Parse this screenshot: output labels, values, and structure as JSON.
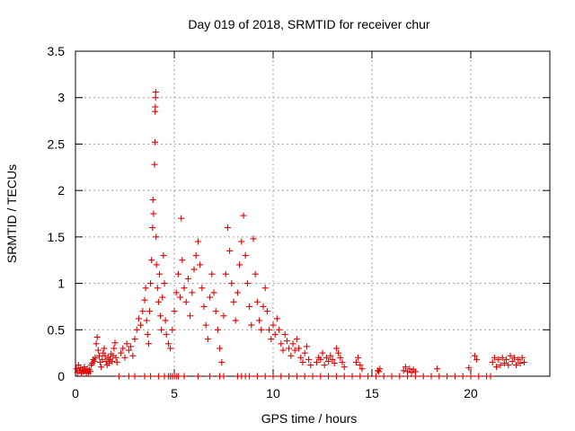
{
  "chart_data": {
    "type": "scatter",
    "title": "Day 019 of 2018, SRMTID for receiver chur",
    "xlabel": "GPS time / hours",
    "ylabel": "SRMTID / TECUs",
    "xlim": [
      0,
      24
    ],
    "ylim": [
      0,
      3.5
    ],
    "xticks": [
      "0",
      "5",
      "10",
      "15",
      "20"
    ],
    "xtick_values": [
      0,
      5,
      10,
      15,
      20
    ],
    "yticks": [
      "0",
      "0.5",
      "1",
      "1.5",
      "2",
      "2.5",
      "3",
      "3.5"
    ],
    "ytick_values": [
      0,
      0.5,
      1,
      1.5,
      2,
      2.5,
      3,
      3.5
    ],
    "grid": true,
    "marker": "+",
    "marker_color": "#e00000",
    "series": [
      {
        "name": "SRMTID",
        "points": [
          [
            0.05,
            0.08
          ],
          [
            0.1,
            0.04
          ],
          [
            0.15,
            0.12
          ],
          [
            0.2,
            0.06
          ],
          [
            0.25,
            0.09
          ],
          [
            0.3,
            0.03
          ],
          [
            0.35,
            0.07
          ],
          [
            0.4,
            0.05
          ],
          [
            0.45,
            0.1
          ],
          [
            0.5,
            0.06
          ],
          [
            0.55,
            0.04
          ],
          [
            0.6,
            0.08
          ],
          [
            0.65,
            0.03
          ],
          [
            0.7,
            0.07
          ],
          [
            0.75,
            0.05
          ],
          [
            0.8,
            0.12
          ],
          [
            0.85,
            0.14
          ],
          [
            0.9,
            0.18
          ],
          [
            0.95,
            0.16
          ],
          [
            1.0,
            0.2
          ],
          [
            1.05,
            0.35
          ],
          [
            1.1,
            0.42
          ],
          [
            1.15,
            0.28
          ],
          [
            1.2,
            0.22
          ],
          [
            1.25,
            0.15
          ],
          [
            1.3,
            0.1
          ],
          [
            1.35,
            0.18
          ],
          [
            1.4,
            0.25
          ],
          [
            1.45,
            0.3
          ],
          [
            1.5,
            0.22
          ],
          [
            1.55,
            0.16
          ],
          [
            1.6,
            0.12
          ],
          [
            1.65,
            0.2
          ],
          [
            1.7,
            0.14
          ],
          [
            1.75,
            0.18
          ],
          [
            1.8,
            0.24
          ],
          [
            1.85,
            0.16
          ],
          [
            1.9,
            0.22
          ],
          [
            1.95,
            0.3
          ],
          [
            2.0,
            0.36
          ],
          [
            2.05,
            0.2
          ],
          [
            2.1,
            0.15
          ],
          [
            2.3,
            0.25
          ],
          [
            2.4,
            0.3
          ],
          [
            2.5,
            0.2
          ],
          [
            2.6,
            0.35
          ],
          [
            2.7,
            0.28
          ],
          [
            2.8,
            0.32
          ],
          [
            2.9,
            0.22
          ],
          [
            3.0,
            0.4
          ],
          [
            3.1,
            0.5
          ],
          [
            3.2,
            0.62
          ],
          [
            3.3,
            0.55
          ],
          [
            3.4,
            0.7
          ],
          [
            3.5,
            0.82
          ],
          [
            3.55,
            0.95
          ],
          [
            3.6,
            0.6
          ],
          [
            3.65,
            0.45
          ],
          [
            3.7,
            0.35
          ],
          [
            3.75,
            0.7
          ],
          [
            3.8,
            1.0
          ],
          [
            3.85,
            1.25
          ],
          [
            3.9,
            1.6
          ],
          [
            3.92,
            1.9
          ],
          [
            3.95,
            1.75
          ],
          [
            4.0,
            2.28
          ],
          [
            4.02,
            2.52
          ],
          [
            4.03,
            2.85
          ],
          [
            4.04,
            2.9
          ],
          [
            4.05,
            3.0
          ],
          [
            4.06,
            3.06
          ],
          [
            4.08,
            1.5
          ],
          [
            4.1,
            1.2
          ],
          [
            4.15,
            0.95
          ],
          [
            4.2,
            0.8
          ],
          [
            4.25,
            1.1
          ],
          [
            4.3,
            0.65
          ],
          [
            4.35,
            0.5
          ],
          [
            4.4,
            0.85
          ],
          [
            4.45,
            1.3
          ],
          [
            4.5,
            1.0
          ],
          [
            4.55,
            0.6
          ],
          [
            4.6,
            0.45
          ],
          [
            4.7,
            0.35
          ],
          [
            4.8,
            0.3
          ],
          [
            4.9,
            0.5
          ],
          [
            5.0,
            0.7
          ],
          [
            5.1,
            0.9
          ],
          [
            5.2,
            1.1
          ],
          [
            5.3,
            0.85
          ],
          [
            5.35,
            1.7
          ],
          [
            5.4,
            1.25
          ],
          [
            5.5,
            0.95
          ],
          [
            5.6,
            0.8
          ],
          [
            5.7,
            1.05
          ],
          [
            5.8,
            0.65
          ],
          [
            5.9,
            0.9
          ],
          [
            6.0,
            1.15
          ],
          [
            6.1,
            1.3
          ],
          [
            6.2,
            1.45
          ],
          [
            6.3,
            1.2
          ],
          [
            6.4,
            0.95
          ],
          [
            6.5,
            0.75
          ],
          [
            6.6,
            0.55
          ],
          [
            6.7,
            0.4
          ],
          [
            6.8,
            0.85
          ],
          [
            6.9,
            1.1
          ],
          [
            7.0,
            0.9
          ],
          [
            7.1,
            0.7
          ],
          [
            7.2,
            0.5
          ],
          [
            7.3,
            0.3
          ],
          [
            7.4,
            0.15
          ],
          [
            7.5,
            0.65
          ],
          [
            7.6,
            1.1
          ],
          [
            7.7,
            1.6
          ],
          [
            7.8,
            1.35
          ],
          [
            7.9,
            1.0
          ],
          [
            8.0,
            0.8
          ],
          [
            8.1,
            0.6
          ],
          [
            8.2,
            0.9
          ],
          [
            8.3,
            1.2
          ],
          [
            8.4,
            1.45
          ],
          [
            8.5,
            1.73
          ],
          [
            8.6,
            1.3
          ],
          [
            8.7,
            1.0
          ],
          [
            8.8,
            0.75
          ],
          [
            8.9,
            0.55
          ],
          [
            9.0,
            1.48
          ],
          [
            9.1,
            1.1
          ],
          [
            9.2,
            0.8
          ],
          [
            9.3,
            0.6
          ],
          [
            9.4,
            0.5
          ],
          [
            9.5,
            0.75
          ],
          [
            9.6,
            0.95
          ],
          [
            9.7,
            0.7
          ],
          [
            9.8,
            0.5
          ],
          [
            9.9,
            0.4
          ],
          [
            10.0,
            0.55
          ],
          [
            10.1,
            0.45
          ],
          [
            10.2,
            0.62
          ],
          [
            10.3,
            0.5
          ],
          [
            10.4,
            0.35
          ],
          [
            10.5,
            0.28
          ],
          [
            10.6,
            0.45
          ],
          [
            10.7,
            0.38
          ],
          [
            10.8,
            0.3
          ],
          [
            10.9,
            0.22
          ],
          [
            11.0,
            0.35
          ],
          [
            11.1,
            0.28
          ],
          [
            11.2,
            0.4
          ],
          [
            11.3,
            0.3
          ],
          [
            11.4,
            0.2
          ],
          [
            11.5,
            0.15
          ],
          [
            11.6,
            0.25
          ],
          [
            11.7,
            0.32
          ],
          [
            11.8,
            0.18
          ],
          [
            11.9,
            0.12
          ],
          [
            12.2,
            0.15
          ],
          [
            12.3,
            0.2
          ],
          [
            12.4,
            0.18
          ],
          [
            12.5,
            0.25
          ],
          [
            12.6,
            0.12
          ],
          [
            12.7,
            0.2
          ],
          [
            12.8,
            0.16
          ],
          [
            12.9,
            0.22
          ],
          [
            13.0,
            0.18
          ],
          [
            13.1,
            0.14
          ],
          [
            13.2,
            0.3
          ],
          [
            13.3,
            0.25
          ],
          [
            13.4,
            0.2
          ],
          [
            13.5,
            0.15
          ],
          [
            13.6,
            0.1
          ],
          [
            14.2,
            0.15
          ],
          [
            14.3,
            0.2
          ],
          [
            14.4,
            0.12
          ],
          [
            14.5,
            0.08
          ],
          [
            15.3,
            0.06
          ],
          [
            15.35,
            0.05
          ],
          [
            15.4,
            0.08
          ],
          [
            16.6,
            0.06
          ],
          [
            16.7,
            0.1
          ],
          [
            16.8,
            0.05
          ],
          [
            16.9,
            0.08
          ],
          [
            17.0,
            0.04
          ],
          [
            17.1,
            0.07
          ],
          [
            17.2,
            0.05
          ],
          [
            18.3,
            0.08
          ],
          [
            19.9,
            0.09
          ],
          [
            20.2,
            0.22
          ],
          [
            20.3,
            0.18
          ],
          [
            21.1,
            0.15
          ],
          [
            21.2,
            0.2
          ],
          [
            21.3,
            0.1
          ],
          [
            21.4,
            0.18
          ],
          [
            21.5,
            0.12
          ],
          [
            21.6,
            0.2
          ],
          [
            21.7,
            0.14
          ],
          [
            21.8,
            0.18
          ],
          [
            21.9,
            0.12
          ],
          [
            22.0,
            0.22
          ],
          [
            22.1,
            0.16
          ],
          [
            22.2,
            0.2
          ],
          [
            22.3,
            0.12
          ],
          [
            22.4,
            0.18
          ],
          [
            22.5,
            0.14
          ],
          [
            22.6,
            0.2
          ],
          [
            22.7,
            0.15
          ],
          [
            3.5,
            0.0
          ],
          [
            3.8,
            0.0
          ],
          [
            4.2,
            0.0
          ],
          [
            4.5,
            0.0
          ],
          [
            4.7,
            0.0
          ],
          [
            4.8,
            0.0
          ],
          [
            4.9,
            0.0
          ],
          [
            5.0,
            0.0
          ],
          [
            5.1,
            0.0
          ],
          [
            5.2,
            0.0
          ],
          [
            5.5,
            0.0
          ],
          [
            6.2,
            0.0
          ],
          [
            6.8,
            0.0
          ],
          [
            7.3,
            0.0
          ],
          [
            7.5,
            0.0
          ],
          [
            8.2,
            0.0
          ],
          [
            8.4,
            0.0
          ],
          [
            8.6,
            0.0
          ],
          [
            8.8,
            0.0
          ],
          [
            9.2,
            0.0
          ],
          [
            9.6,
            0.0
          ],
          [
            10.0,
            0.0
          ],
          [
            10.4,
            0.0
          ],
          [
            10.8,
            0.0
          ],
          [
            11.2,
            0.0
          ],
          [
            11.6,
            0.0
          ],
          [
            12.0,
            0.0
          ],
          [
            12.4,
            0.0
          ],
          [
            12.8,
            0.0
          ],
          [
            13.2,
            0.0
          ],
          [
            13.6,
            0.0
          ],
          [
            14.0,
            0.0
          ],
          [
            14.4,
            0.0
          ],
          [
            14.8,
            0.0
          ],
          [
            15.2,
            0.0
          ],
          [
            15.6,
            0.0
          ],
          [
            16.0,
            0.0
          ],
          [
            16.4,
            0.0
          ],
          [
            16.8,
            0.0
          ],
          [
            17.2,
            0.0
          ],
          [
            17.6,
            0.0
          ],
          [
            18.0,
            0.0
          ],
          [
            18.4,
            0.0
          ],
          [
            18.8,
            0.0
          ],
          [
            19.2,
            0.0
          ],
          [
            19.6,
            0.0
          ],
          [
            20.0,
            0.0
          ],
          [
            20.4,
            0.0
          ],
          [
            20.8,
            0.0
          ],
          [
            21.0,
            0.0
          ],
          [
            2.2,
            0.0
          ],
          [
            2.7,
            0.0
          ],
          [
            3.0,
            0.0
          ]
        ]
      }
    ]
  }
}
